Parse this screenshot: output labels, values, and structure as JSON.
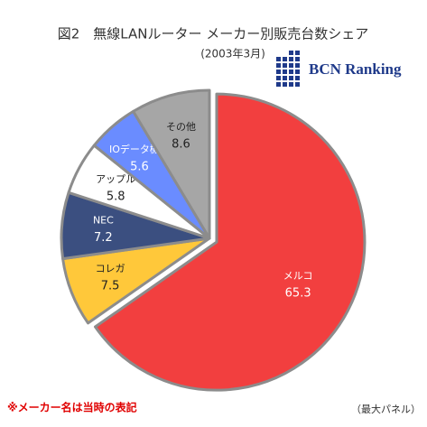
{
  "chart_data": {
    "type": "pie",
    "title": "図2　無線LANルーター メーカー別販売台数シェア",
    "subtitle": "(2003年3月)",
    "logo_text": "BCN Ranking",
    "footnote": "※メーカー名は当時の表記",
    "source_note": "（最大パネル）",
    "categories": [
      "メルコ",
      "コレガ",
      "NEC",
      "アップル",
      "IOデータ機器",
      "その他"
    ],
    "values": [
      65.3,
      7.5,
      7.2,
      5.8,
      5.6,
      8.6
    ],
    "colors": [
      "#f23f3f",
      "#ffc83a",
      "#3b4f80",
      "#ffffff",
      "#6a8cff",
      "#a6a6a6"
    ]
  }
}
